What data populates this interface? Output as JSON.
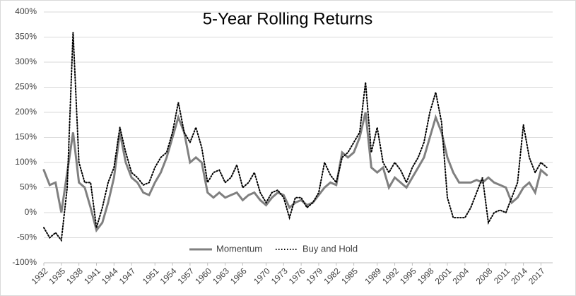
{
  "chart_data": {
    "type": "line",
    "title": "5-Year Rolling Returns",
    "x": [
      1932,
      1933,
      1934,
      1935,
      1936,
      1937,
      1938,
      1939,
      1940,
      1941,
      1942,
      1943,
      1944,
      1945,
      1946,
      1947,
      1948,
      1949,
      1950,
      1951,
      1952,
      1953,
      1954,
      1955,
      1956,
      1957,
      1958,
      1959,
      1960,
      1961,
      1962,
      1963,
      1964,
      1965,
      1966,
      1967,
      1968,
      1969,
      1970,
      1971,
      1972,
      1973,
      1974,
      1975,
      1976,
      1977,
      1978,
      1979,
      1980,
      1981,
      1982,
      1983,
      1984,
      1985,
      1986,
      1987,
      1988,
      1989,
      1990,
      1991,
      1992,
      1993,
      1994,
      1995,
      1996,
      1997,
      1998,
      1999,
      2000,
      2001,
      2002,
      2003,
      2004,
      2005,
      2006,
      2007,
      2008,
      2009,
      2010,
      2011,
      2012,
      2013,
      2014,
      2015,
      2016,
      2017,
      2018
    ],
    "series": [
      {
        "name": "Momentum",
        "color": "#808080",
        "style": "solid",
        "values": [
          85,
          55,
          60,
          0,
          80,
          160,
          60,
          50,
          10,
          -35,
          -20,
          20,
          70,
          160,
          100,
          70,
          60,
          40,
          35,
          60,
          80,
          110,
          150,
          190,
          160,
          100,
          110,
          100,
          40,
          30,
          40,
          30,
          35,
          40,
          25,
          35,
          40,
          25,
          15,
          30,
          40,
          35,
          10,
          20,
          25,
          15,
          20,
          35,
          50,
          60,
          55,
          120,
          110,
          120,
          150,
          200,
          90,
          80,
          90,
          50,
          70,
          60,
          50,
          70,
          90,
          110,
          150,
          190,
          160,
          110,
          80,
          60,
          60,
          60,
          65,
          60,
          70,
          60,
          55,
          50,
          20,
          30,
          50,
          60,
          40,
          85,
          75
        ]
      },
      {
        "name": "Buy and Hold",
        "color": "#000000",
        "style": "dotted",
        "values": [
          -30,
          -50,
          -40,
          -55,
          50,
          360,
          100,
          60,
          60,
          -30,
          10,
          60,
          90,
          170,
          120,
          80,
          70,
          55,
          60,
          90,
          110,
          120,
          160,
          220,
          160,
          140,
          170,
          130,
          60,
          80,
          85,
          60,
          70,
          95,
          50,
          60,
          80,
          40,
          20,
          40,
          45,
          30,
          -10,
          30,
          30,
          10,
          20,
          40,
          100,
          75,
          60,
          110,
          120,
          140,
          160,
          260,
          120,
          170,
          100,
          80,
          100,
          85,
          60,
          90,
          110,
          140,
          200,
          240,
          180,
          30,
          -10,
          -10,
          -10,
          10,
          40,
          70,
          -20,
          0,
          5,
          0,
          30,
          60,
          175,
          110,
          80,
          100,
          90
        ]
      }
    ],
    "xlim": [
      1932,
      2019
    ],
    "xticks": [
      1932,
      1935,
      1938,
      1941,
      1944,
      1947,
      1951,
      1954,
      1957,
      1960,
      1963,
      1966,
      1970,
      1973,
      1976,
      1979,
      1982,
      1985,
      1989,
      1992,
      1995,
      1998,
      2001,
      2004,
      2008,
      2011,
      2014,
      2017
    ],
    "ylim": [
      -100,
      400
    ],
    "yticks": [
      {
        "value": -100,
        "label": "-100%"
      },
      {
        "value": -50,
        "label": "-50%"
      },
      {
        "value": 0,
        "label": "0%"
      },
      {
        "value": 50,
        "label": "50%"
      },
      {
        "value": 100,
        "label": "100%"
      },
      {
        "value": 150,
        "label": "150%"
      },
      {
        "value": 200,
        "label": "200%"
      },
      {
        "value": 250,
        "label": "250%"
      },
      {
        "value": 300,
        "label": "300%"
      },
      {
        "value": 350,
        "label": "350%"
      },
      {
        "value": 400,
        "label": "400%"
      }
    ],
    "grid": true,
    "legend": "bottom"
  }
}
